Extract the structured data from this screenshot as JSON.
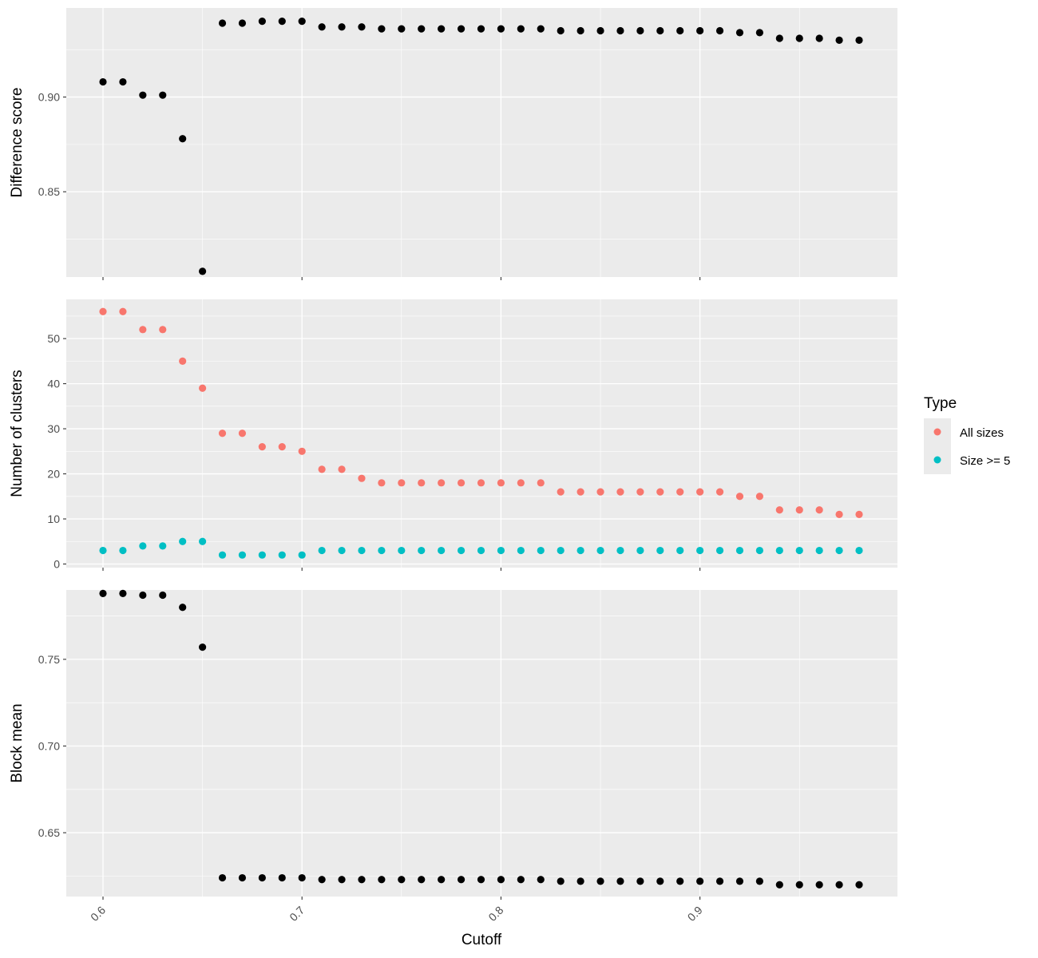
{
  "chart_data": {
    "type": "scatter",
    "xlabel": "Cutoff",
    "xlim": [
      0.6,
      0.98
    ],
    "x_ticks": [
      {
        "value": 0.6,
        "label": "0.6"
      },
      {
        "value": 0.7,
        "label": "0.7"
      },
      {
        "value": 0.8,
        "label": "0.8"
      },
      {
        "value": 0.9,
        "label": "0.9"
      }
    ],
    "x": [
      0.6,
      0.61,
      0.62,
      0.63,
      0.64,
      0.65,
      0.66,
      0.67,
      0.68,
      0.69,
      0.7,
      0.71,
      0.72,
      0.73,
      0.74,
      0.75,
      0.76,
      0.77,
      0.78,
      0.79,
      0.8,
      0.81,
      0.82,
      0.83,
      0.84,
      0.85,
      0.86,
      0.87,
      0.88,
      0.89,
      0.9,
      0.91,
      0.92,
      0.93,
      0.94,
      0.95,
      0.96,
      0.97,
      0.98
    ],
    "grid": true,
    "legend": {
      "title": "Type",
      "position": "right",
      "entries": [
        {
          "label": "All sizes",
          "color": "#F8766D"
        },
        {
          "label": "Size >= 5",
          "color": "#00BFC4"
        }
      ]
    },
    "panels": [
      {
        "ylabel": "Difference score",
        "ylim": [
          0.805,
          0.947
        ],
        "y_ticks": [
          {
            "value": 0.85,
            "label": "0.85"
          },
          {
            "value": 0.9,
            "label": "0.90"
          }
        ],
        "series": [
          {
            "color": "#000000",
            "values": [
              0.908,
              0.908,
              0.901,
              0.901,
              0.878,
              0.808,
              0.939,
              0.939,
              0.94,
              0.94,
              0.94,
              0.937,
              0.937,
              0.937,
              0.936,
              0.936,
              0.936,
              0.936,
              0.936,
              0.936,
              0.936,
              0.936,
              0.936,
              0.935,
              0.935,
              0.935,
              0.935,
              0.935,
              0.935,
              0.935,
              0.935,
              0.935,
              0.934,
              0.934,
              0.931,
              0.931,
              0.931,
              0.93,
              0.93
            ]
          }
        ]
      },
      {
        "ylabel": "Number of clusters",
        "ylim": [
          -0.8,
          58.7
        ],
        "y_ticks": [
          {
            "value": 0,
            "label": "0"
          },
          {
            "value": 10,
            "label": "10"
          },
          {
            "value": 20,
            "label": "20"
          },
          {
            "value": 30,
            "label": "30"
          },
          {
            "value": 40,
            "label": "40"
          },
          {
            "value": 50,
            "label": "50"
          }
        ],
        "series": [
          {
            "name": "All sizes",
            "color": "#F8766D",
            "values": [
              56,
              56,
              52,
              52,
              45,
              39,
              29,
              29,
              26,
              26,
              25,
              21,
              21,
              19,
              18,
              18,
              18,
              18,
              18,
              18,
              18,
              18,
              18,
              16,
              16,
              16,
              16,
              16,
              16,
              16,
              16,
              16,
              15,
              15,
              12,
              12,
              12,
              11,
              11
            ]
          },
          {
            "name": "Size >= 5",
            "color": "#00BFC4",
            "values": [
              3,
              3,
              4,
              4,
              5,
              5,
              2,
              2,
              2,
              2,
              2,
              3,
              3,
              3,
              3,
              3,
              3,
              3,
              3,
              3,
              3,
              3,
              3,
              3,
              3,
              3,
              3,
              3,
              3,
              3,
              3,
              3,
              3,
              3,
              3,
              3,
              3,
              3,
              3
            ]
          }
        ]
      },
      {
        "ylabel": "Block mean",
        "ylim": [
          0.6132,
          0.79
        ],
        "y_ticks": [
          {
            "value": 0.65,
            "label": "0.65"
          },
          {
            "value": 0.7,
            "label": "0.70"
          },
          {
            "value": 0.75,
            "label": "0.75"
          }
        ],
        "series": [
          {
            "color": "#000000",
            "values": [
              0.788,
              0.788,
              0.787,
              0.787,
              0.78,
              0.757,
              0.624,
              0.624,
              0.624,
              0.624,
              0.624,
              0.623,
              0.623,
              0.623,
              0.623,
              0.623,
              0.623,
              0.623,
              0.623,
              0.623,
              0.623,
              0.623,
              0.623,
              0.622,
              0.622,
              0.622,
              0.622,
              0.622,
              0.622,
              0.622,
              0.622,
              0.622,
              0.622,
              0.622,
              0.62,
              0.62,
              0.62,
              0.62,
              0.62
            ]
          }
        ]
      }
    ]
  }
}
